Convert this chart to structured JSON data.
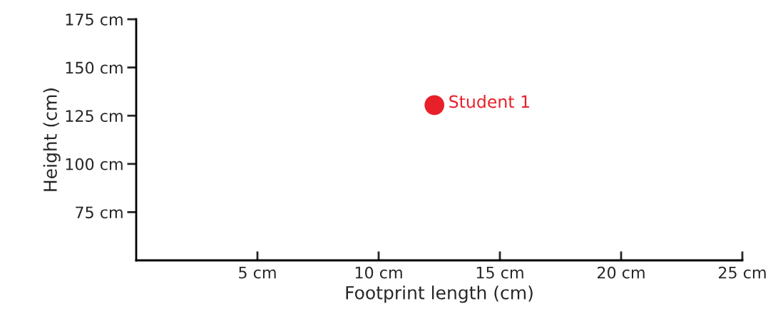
{
  "chart_data": {
    "type": "scatter",
    "xlabel": "Footprint length (cm)",
    "ylabel": "Height (cm)",
    "series": [
      {
        "name": "Student 1",
        "color": "#e8202a",
        "x": [
          12.3
        ],
        "values": [
          130.5
        ]
      }
    ],
    "xlim": [
      0,
      25
    ],
    "ylim": [
      50,
      175
    ],
    "xticks": [
      {
        "value": 5,
        "label": "5 cm"
      },
      {
        "value": 10,
        "label": "10 cm"
      },
      {
        "value": 15,
        "label": "15 cm"
      },
      {
        "value": 20,
        "label": "20 cm"
      },
      {
        "value": 25,
        "label": "25 cm"
      }
    ],
    "yticks": [
      {
        "value": 75,
        "label": "75 cm"
      },
      {
        "value": 100,
        "label": "100 cm"
      },
      {
        "value": 125,
        "label": "125 cm"
      },
      {
        "value": 150,
        "label": "150 cm"
      },
      {
        "value": 175,
        "label": "175 cm"
      }
    ],
    "grid": false,
    "legend": false,
    "marker": "circle"
  }
}
